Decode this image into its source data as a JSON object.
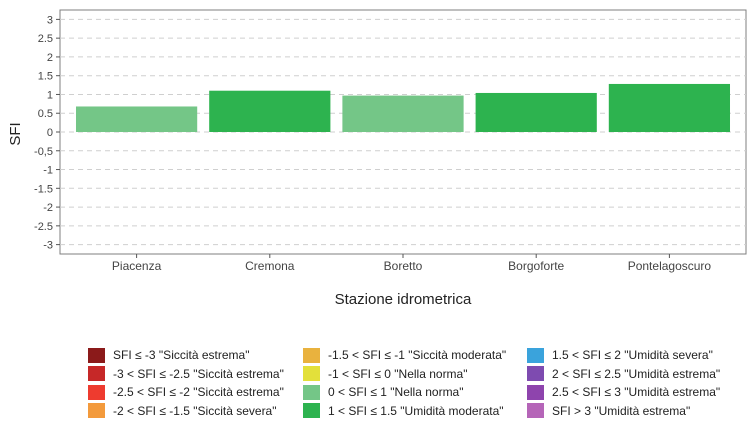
{
  "chart_data": {
    "type": "bar",
    "title": "",
    "xlabel": "Stazione idrometrica",
    "ylabel": "SFI",
    "ylim": [
      -3.25,
      3.25
    ],
    "yticks": [
      "3",
      "2.5",
      "2",
      "1.5",
      "1",
      "0.5",
      "0",
      "-0,5",
      "-1",
      "-1.5",
      "-2",
      "-2.5",
      "-3"
    ],
    "ytick_values": [
      3,
      2.5,
      2,
      1.5,
      1,
      0.5,
      0,
      -0.5,
      -1,
      -1.5,
      -2,
      -2.5,
      -3
    ],
    "grid": true,
    "categories": [
      "Piacenza",
      "Cremona",
      "Boretto",
      "Borgoforte",
      "Pontelagoscuro"
    ],
    "values": [
      0.68,
      1.1,
      0.97,
      1.04,
      1.28
    ],
    "bar_colors": [
      "#74c687",
      "#2db34f",
      "#74c687",
      "#2db34f",
      "#2db34f"
    ],
    "legend_position": "bottom",
    "legend": [
      {
        "label": "SFI ≤ -3 \"Siccità estrema\"",
        "color": "#8b1a1a"
      },
      {
        "label": "-3 < SFI ≤ -2.5 \"Siccità estrema\"",
        "color": "#c62828"
      },
      {
        "label": "-2.5 < SFI ≤ -2 \"Siccità estrema\"",
        "color": "#ee3b2f"
      },
      {
        "label": "-2 < SFI ≤ -1.5 \"Siccità severa\"",
        "color": "#f39a3c"
      },
      {
        "label": "-1.5 < SFI ≤ -1 \"Siccità moderata\"",
        "color": "#e9b23e"
      },
      {
        "label": "-1 < SFI ≤ 0 \"Nella norma\"",
        "color": "#e3e03a"
      },
      {
        "label": "0 < SFI ≤ 1 \"Nella norma\"",
        "color": "#74c687"
      },
      {
        "label": "1 < SFI ≤ 1.5 \"Umidità moderata\"",
        "color": "#2db34f"
      },
      {
        "label": "1.5 < SFI ≤ 2 \"Umidità severa\"",
        "color": "#3aa3dc"
      },
      {
        "label": "2 < SFI ≤ 2.5 \"Umidità estrema\"",
        "color": "#7e4bb0"
      },
      {
        "label": "2.5 < SFI ≤ 3 \"Umidità estrema\"",
        "color": "#8e44ad"
      },
      {
        "label": "SFI > 3 \"Umidità estrema\"",
        "color": "#b565b8"
      }
    ]
  }
}
